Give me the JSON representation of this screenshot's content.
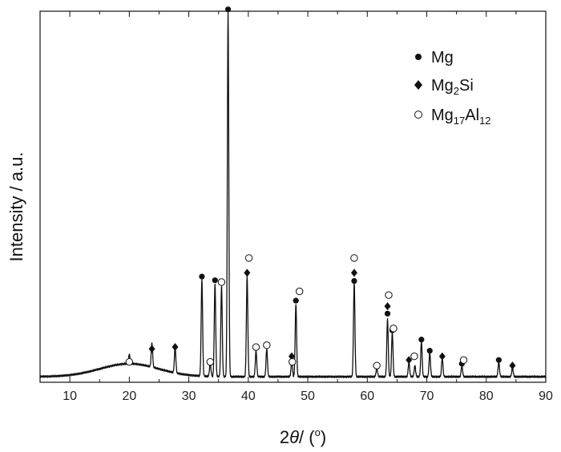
{
  "chart_data": {
    "type": "line",
    "xlabel": "2θ/ (°)",
    "ylabel": "Intensity / a.u.",
    "xlim": [
      5,
      90
    ],
    "ylim": [
      0,
      100
    ],
    "xticks": [
      10,
      20,
      30,
      40,
      50,
      60,
      70,
      80,
      90
    ],
    "yticks_shown": false,
    "grid": false,
    "legend_position": "top-right",
    "background_level": 1.5,
    "amorphous_hump": {
      "center": 20,
      "width": 7,
      "height": 3.5
    },
    "peaks": [
      {
        "x": 20.0,
        "y": 2.5
      },
      {
        "x": 23.8,
        "y": 6.5
      },
      {
        "x": 27.7,
        "y": 7.0
      },
      {
        "x": 32.2,
        "y": 26.0
      },
      {
        "x": 33.6,
        "y": 3.5
      },
      {
        "x": 34.4,
        "y": 25.0
      },
      {
        "x": 35.5,
        "y": 24.5
      },
      {
        "x": 36.6,
        "y": 98.0
      },
      {
        "x": 39.8,
        "y": 27.0
      },
      {
        "x": 41.3,
        "y": 7.0
      },
      {
        "x": 43.1,
        "y": 7.5
      },
      {
        "x": 47.3,
        "y": 4.0
      },
      {
        "x": 48.0,
        "y": 19.5
      },
      {
        "x": 57.8,
        "y": 25.5
      },
      {
        "x": 61.6,
        "y": 2.5
      },
      {
        "x": 63.4,
        "y": 15.5
      },
      {
        "x": 64.2,
        "y": 12.0
      },
      {
        "x": 67.0,
        "y": 4.0
      },
      {
        "x": 68.0,
        "y": 3.0
      },
      {
        "x": 69.1,
        "y": 9.5
      },
      {
        "x": 70.5,
        "y": 6.5
      },
      {
        "x": 72.6,
        "y": 5.0
      },
      {
        "x": 75.9,
        "y": 3.0
      },
      {
        "x": 82.1,
        "y": 4.0
      },
      {
        "x": 84.4,
        "y": 2.5
      }
    ],
    "series": [
      {
        "name": "Mg",
        "marker": "filled-circle",
        "points": [
          [
            32.2,
            28.5
          ],
          [
            34.4,
            27.5
          ],
          [
            36.6,
            100.5
          ],
          [
            48.0,
            22.0
          ],
          [
            57.8,
            27.3
          ],
          [
            63.4,
            18.5
          ],
          [
            64.2,
            14.0
          ],
          [
            69.1,
            11.5
          ],
          [
            70.5,
            8.5
          ],
          [
            75.9,
            5.0
          ],
          [
            82.1,
            6.0
          ]
        ]
      },
      {
        "name": "Mg2Si",
        "marker": "filled-diamond",
        "points": [
          [
            23.8,
            9.0
          ],
          [
            27.7,
            9.5
          ],
          [
            39.8,
            29.5
          ],
          [
            47.3,
            7.0
          ],
          [
            57.8,
            29.5
          ],
          [
            63.4,
            20.5
          ],
          [
            67.0,
            6.0
          ],
          [
            72.6,
            7.0
          ],
          [
            84.4,
            4.5
          ]
        ]
      },
      {
        "name": "Mg17Al12",
        "marker": "open-circle",
        "points": [
          [
            20.0,
            5.5
          ],
          [
            33.6,
            5.5
          ],
          [
            35.5,
            27.0
          ],
          [
            40.1,
            33.5
          ],
          [
            41.3,
            9.5
          ],
          [
            43.1,
            10.0
          ],
          [
            47.4,
            5.5
          ],
          [
            48.6,
            24.5
          ],
          [
            57.8,
            33.5
          ],
          [
            61.6,
            4.5
          ],
          [
            63.6,
            23.5
          ],
          [
            64.4,
            14.5
          ],
          [
            67.9,
            7.0
          ],
          [
            76.2,
            6.0
          ]
        ]
      }
    ]
  },
  "legend": {
    "mg": {
      "base": "Mg",
      "sub": "",
      "rest": "",
      "sub2": ""
    },
    "mg2si": {
      "base": "Mg",
      "sub": "2",
      "rest": "Si",
      "sub2": ""
    },
    "mg17al12": {
      "base": "Mg",
      "sub": "17",
      "rest": "Al",
      "sub2": "12"
    }
  },
  "labels": {
    "x_prefix": "2",
    "x_theta": "θ",
    "x_suffix_open": "/ (",
    "x_degree": "o",
    "x_suffix_close": ")",
    "y": "Intensity / a.u."
  },
  "colors": {
    "line": "#111111",
    "marker": "#111111",
    "background": "#ffffff"
  }
}
